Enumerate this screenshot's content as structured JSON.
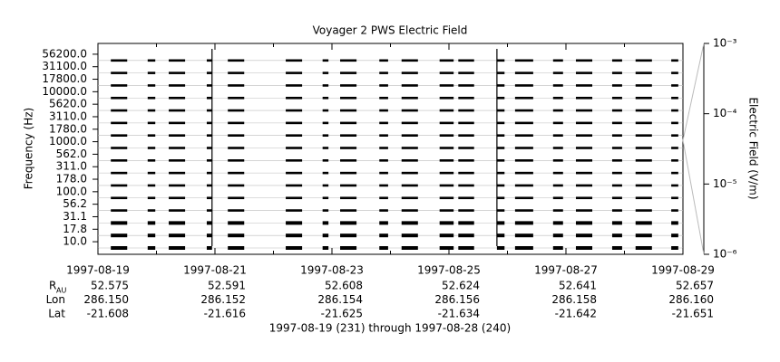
{
  "chart_data": {
    "type": "spectrum-stack",
    "title": "Voyager 2 PWS Electric Field",
    "y_label": "Frequency (Hz)",
    "y2_label": "Electric Field (V/m)",
    "footer": "1997-08-19 (231) through 1997-08-28 (240)",
    "channels": [
      {
        "value": 56200,
        "label": "56200.0"
      },
      {
        "value": 31100,
        "label": "31100.0"
      },
      {
        "value": 17800,
        "label": "17800.0"
      },
      {
        "value": 10000,
        "label": "10000.0"
      },
      {
        "value": 5620,
        "label": "5620.0"
      },
      {
        "value": 3110,
        "label": "3110.0"
      },
      {
        "value": 1780,
        "label": "1780.0"
      },
      {
        "value": 1000,
        "label": "1000.0"
      },
      {
        "value": 562,
        "label": "562.0"
      },
      {
        "value": 311,
        "label": "311.0"
      },
      {
        "value": 178,
        "label": "178.0"
      },
      {
        "value": 100,
        "label": "100.0"
      },
      {
        "value": 56.2,
        "label": "56.2"
      },
      {
        "value": 31.1,
        "label": "31.1"
      },
      {
        "value": 17.8,
        "label": "17.8"
      },
      {
        "value": 10,
        "label": "10.0"
      }
    ],
    "xlim": [
      231,
      241
    ],
    "xticks": [
      {
        "value": 231,
        "label": "1997-08-19"
      },
      {
        "value": 233,
        "label": "1997-08-21"
      },
      {
        "value": 235,
        "label": "1997-08-23"
      },
      {
        "value": 237,
        "label": "1997-08-25"
      },
      {
        "value": 239,
        "label": "1997-08-27"
      },
      {
        "value": 241,
        "label": "1997-08-29"
      }
    ],
    "minor_xticks": [
      232,
      234,
      236,
      238,
      240
    ],
    "segments": [
      [
        231.22,
        231.5
      ],
      [
        231.85,
        231.98
      ],
      [
        232.21,
        232.49
      ],
      [
        232.86,
        232.95
      ],
      [
        233.22,
        233.5
      ],
      [
        234.21,
        234.49
      ],
      [
        234.84,
        234.94
      ],
      [
        235.14,
        235.42
      ],
      [
        235.81,
        235.96
      ],
      [
        236.19,
        236.47
      ],
      [
        236.84,
        237.08
      ],
      [
        237.16,
        237.43
      ],
      [
        237.82,
        237.95
      ],
      [
        238.13,
        238.44
      ],
      [
        238.78,
        238.95
      ],
      [
        239.17,
        239.45
      ],
      [
        239.79,
        239.96
      ],
      [
        240.19,
        240.47
      ],
      [
        240.8,
        240.92
      ]
    ],
    "bursts": [
      232.95,
      237.82
    ],
    "y2lim": [
      1e-06,
      0.001
    ],
    "y2log": true,
    "y2ticks": [
      {
        "value": 0.001,
        "label": "10⁻³"
      },
      {
        "value": 0.0001,
        "label": "10⁻⁴"
      },
      {
        "value": 1e-05,
        "label": "10⁻⁵"
      },
      {
        "value": 1e-06,
        "label": "10⁻⁶"
      }
    ],
    "ephemeris": [
      {
        "name": "R",
        "sub": "AU",
        "values": [
          "52.575",
          "52.591",
          "52.608",
          "52.624",
          "52.641",
          "52.657"
        ]
      },
      {
        "name": "Lon",
        "values": [
          "286.150",
          "286.152",
          "286.154",
          "286.156",
          "286.158",
          "286.160"
        ]
      },
      {
        "name": "Lat",
        "values": [
          "-21.608",
          "-21.616",
          "-21.625",
          "-21.634",
          "-21.642",
          "-21.651"
        ]
      }
    ]
  }
}
